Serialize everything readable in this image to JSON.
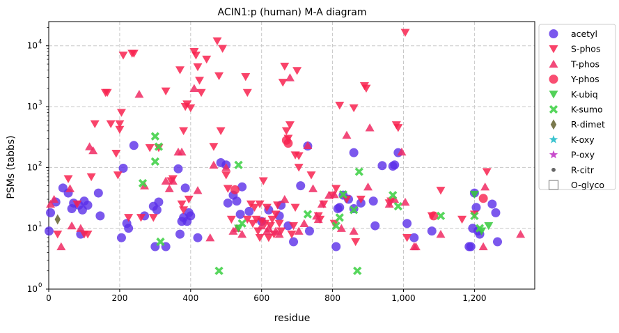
{
  "chart_data": {
    "type": "scatter",
    "title": "ACIN1:p (human) M-A diagram",
    "xlabel": "residue",
    "ylabel": "PSMs (tabbs)",
    "xlim": [
      0,
      1370
    ],
    "ylim": [
      1,
      25000
    ],
    "yscale": "log",
    "grid": true,
    "legend_position": "right outside",
    "x_ticks": [
      0,
      200,
      400,
      600,
      800,
      1000,
      1200
    ],
    "x_tick_labels": [
      "0",
      "200",
      "400",
      "600",
      "800",
      "1,000",
      "1,200"
    ],
    "y_ticks": [
      1,
      10,
      100,
      1000,
      10000
    ],
    "y_tick_labels": [
      "1",
      "10",
      "100",
      "1000",
      "10000"
    ],
    "series": [
      {
        "name": "acetyl",
        "marker": "circle",
        "color": "#5a2ee8",
        "points": [
          [
            1,
            9
          ],
          [
            5,
            18
          ],
          [
            20,
            27
          ],
          [
            40,
            46
          ],
          [
            55,
            38
          ],
          [
            65,
            21
          ],
          [
            70,
            26
          ],
          [
            85,
            24
          ],
          [
            90,
            8
          ],
          [
            95,
            20
          ],
          [
            100,
            28
          ],
          [
            110,
            24
          ],
          [
            140,
            38
          ],
          [
            145,
            16
          ],
          [
            205,
            7
          ],
          [
            210,
            97
          ],
          [
            220,
            12
          ],
          [
            225,
            10
          ],
          [
            240,
            230
          ],
          [
            270,
            16
          ],
          [
            295,
            23
          ],
          [
            300,
            5
          ],
          [
            305,
            20
          ],
          [
            310,
            27
          ],
          [
            330,
            5
          ],
          [
            365,
            95
          ],
          [
            370,
            8
          ],
          [
            375,
            13
          ],
          [
            380,
            15
          ],
          [
            385,
            46
          ],
          [
            390,
            13
          ],
          [
            395,
            18
          ],
          [
            400,
            16
          ],
          [
            420,
            7
          ],
          [
            485,
            120
          ],
          [
            500,
            110
          ],
          [
            505,
            26
          ],
          [
            520,
            35
          ],
          [
            530,
            28
          ],
          [
            540,
            17
          ],
          [
            545,
            48
          ],
          [
            565,
            19
          ],
          [
            600,
            13
          ],
          [
            620,
            20
          ],
          [
            650,
            16
          ],
          [
            655,
            24
          ],
          [
            675,
            11
          ],
          [
            690,
            6
          ],
          [
            710,
            50
          ],
          [
            730,
            225
          ],
          [
            735,
            9
          ],
          [
            810,
            5
          ],
          [
            815,
            21
          ],
          [
            820,
            22
          ],
          [
            830,
            35
          ],
          [
            845,
            30
          ],
          [
            860,
            21
          ],
          [
            860,
            175
          ],
          [
            880,
            26
          ],
          [
            915,
            28
          ],
          [
            920,
            11
          ],
          [
            940,
            107
          ],
          [
            970,
            105
          ],
          [
            975,
            110
          ],
          [
            985,
            175
          ],
          [
            1010,
            12
          ],
          [
            1030,
            7
          ],
          [
            1080,
            9
          ],
          [
            1185,
            5
          ],
          [
            1190,
            5
          ],
          [
            1195,
            10
          ],
          [
            1200,
            38
          ],
          [
            1205,
            22
          ],
          [
            1210,
            9
          ],
          [
            1215,
            8
          ],
          [
            1250,
            25
          ],
          [
            1260,
            18
          ],
          [
            1265,
            6
          ]
        ]
      },
      {
        "name": "S-phos",
        "marker": "triangle-down",
        "color": "#f8224f",
        "points": [
          [
            25,
            8
          ],
          [
            55,
            65
          ],
          [
            80,
            25
          ],
          [
            100,
            8
          ],
          [
            110,
            8
          ],
          [
            120,
            70
          ],
          [
            130,
            520
          ],
          [
            160,
            1700
          ],
          [
            165,
            1700
          ],
          [
            175,
            520
          ],
          [
            190,
            170
          ],
          [
            195,
            75
          ],
          [
            200,
            520
          ],
          [
            200,
            420
          ],
          [
            205,
            800
          ],
          [
            210,
            7000
          ],
          [
            225,
            15
          ],
          [
            235,
            7500
          ],
          [
            240,
            7500
          ],
          [
            260,
            15
          ],
          [
            285,
            210
          ],
          [
            295,
            15
          ],
          [
            310,
            210
          ],
          [
            330,
            1800
          ],
          [
            345,
            60
          ],
          [
            350,
            65
          ],
          [
            370,
            4000
          ],
          [
            375,
            25
          ],
          [
            380,
            20
          ],
          [
            380,
            400
          ],
          [
            385,
            1000
          ],
          [
            390,
            1100
          ],
          [
            395,
            30
          ],
          [
            400,
            950
          ],
          [
            410,
            8000
          ],
          [
            415,
            7000
          ],
          [
            420,
            4500
          ],
          [
            425,
            2700
          ],
          [
            430,
            1700
          ],
          [
            445,
            6000
          ],
          [
            465,
            220
          ],
          [
            475,
            12000
          ],
          [
            480,
            3200
          ],
          [
            485,
            400
          ],
          [
            490,
            9000
          ],
          [
            500,
            75
          ],
          [
            505,
            45
          ],
          [
            515,
            14
          ],
          [
            555,
            3100
          ],
          [
            560,
            1700
          ],
          [
            560,
            14
          ],
          [
            570,
            25
          ],
          [
            575,
            12
          ],
          [
            580,
            22
          ],
          [
            585,
            14
          ],
          [
            590,
            9
          ],
          [
            595,
            7
          ],
          [
            595,
            25
          ],
          [
            600,
            13
          ],
          [
            605,
            60
          ],
          [
            610,
            12
          ],
          [
            615,
            22
          ],
          [
            620,
            7
          ],
          [
            625,
            11
          ],
          [
            630,
            14
          ],
          [
            635,
            8
          ],
          [
            640,
            17
          ],
          [
            645,
            24
          ],
          [
            650,
            12
          ],
          [
            655,
            9
          ],
          [
            660,
            2500
          ],
          [
            665,
            4600
          ],
          [
            670,
            400
          ],
          [
            675,
            300
          ],
          [
            680,
            500
          ],
          [
            685,
            8
          ],
          [
            690,
            11
          ],
          [
            695,
            22
          ],
          [
            695,
            160
          ],
          [
            700,
            3900
          ],
          [
            705,
            155
          ],
          [
            705,
            100
          ],
          [
            740,
            75
          ],
          [
            760,
            16
          ],
          [
            765,
            14
          ],
          [
            775,
            25
          ],
          [
            800,
            35
          ],
          [
            805,
            12
          ],
          [
            810,
            45
          ],
          [
            820,
            1050
          ],
          [
            840,
            30
          ],
          [
            860,
            950
          ],
          [
            865,
            6
          ],
          [
            880,
            30
          ],
          [
            890,
            2200
          ],
          [
            895,
            2000
          ],
          [
            960,
            26
          ],
          [
            965,
            28
          ],
          [
            980,
            500
          ],
          [
            985,
            450
          ],
          [
            1005,
            16500
          ],
          [
            1010,
            7
          ],
          [
            1080,
            16
          ],
          [
            1105,
            42
          ],
          [
            1165,
            14
          ],
          [
            1200,
            17
          ],
          [
            1235,
            85
          ]
        ]
      },
      {
        "name": "T-phos",
        "marker": "triangle-up",
        "color": "#f02a63",
        "points": [
          [
            5,
            25
          ],
          [
            15,
            30
          ],
          [
            35,
            5
          ],
          [
            60,
            45
          ],
          [
            65,
            11
          ],
          [
            90,
            10
          ],
          [
            115,
            220
          ],
          [
            125,
            190
          ],
          [
            255,
            1600
          ],
          [
            270,
            50
          ],
          [
            330,
            60
          ],
          [
            340,
            45
          ],
          [
            350,
            60
          ],
          [
            365,
            180
          ],
          [
            375,
            180
          ],
          [
            410,
            2000
          ],
          [
            420,
            42
          ],
          [
            455,
            7
          ],
          [
            465,
            110
          ],
          [
            500,
            100
          ],
          [
            520,
            9
          ],
          [
            530,
            10
          ],
          [
            545,
            8
          ],
          [
            600,
            11
          ],
          [
            615,
            9
          ],
          [
            620,
            10
          ],
          [
            640,
            9
          ],
          [
            650,
            8
          ],
          [
            665,
            30
          ],
          [
            680,
            3000
          ],
          [
            705,
            9
          ],
          [
            720,
            12
          ],
          [
            730,
            230
          ],
          [
            745,
            45
          ],
          [
            755,
            16
          ],
          [
            760,
            14
          ],
          [
            770,
            25
          ],
          [
            790,
            35
          ],
          [
            805,
            36
          ],
          [
            825,
            10
          ],
          [
            840,
            340
          ],
          [
            860,
            9
          ],
          [
            900,
            48
          ],
          [
            905,
            450
          ],
          [
            960,
            25
          ],
          [
            975,
            30
          ],
          [
            995,
            180
          ],
          [
            1005,
            27
          ],
          [
            1030,
            5
          ],
          [
            1035,
            5
          ],
          [
            1105,
            8
          ],
          [
            1225,
            5
          ],
          [
            1230,
            48
          ],
          [
            1330,
            8
          ]
        ]
      },
      {
        "name": "Y-phos",
        "marker": "circle",
        "color": "#f8224f",
        "points": [
          [
            525,
            43
          ],
          [
            670,
            280
          ],
          [
            675,
            250
          ],
          [
            1085,
            16
          ],
          [
            1225,
            31
          ]
        ]
      },
      {
        "name": "K-ubiq",
        "marker": "triangle-down",
        "color": "#34c93b",
        "points": [
          [
            535,
            10
          ],
          [
            1200,
            36
          ],
          [
            1220,
            9
          ],
          [
            1240,
            11
          ]
        ]
      },
      {
        "name": "K-sumo",
        "marker": "x",
        "color": "#44d24a",
        "points": [
          [
            265,
            55
          ],
          [
            300,
            325
          ],
          [
            300,
            125
          ],
          [
            310,
            220
          ],
          [
            315,
            6
          ],
          [
            480,
            2
          ],
          [
            535,
            110
          ],
          [
            545,
            12
          ],
          [
            730,
            17
          ],
          [
            810,
            11
          ],
          [
            820,
            15
          ],
          [
            830,
            36
          ],
          [
            860,
            20
          ],
          [
            870,
            2
          ],
          [
            875,
            85
          ],
          [
            970,
            35
          ],
          [
            985,
            23
          ],
          [
            1105,
            16
          ],
          [
            1200,
            16
          ],
          [
            1215,
            10
          ]
        ]
      },
      {
        "name": "R-dimet",
        "marker": "diamond",
        "color": "#6b6a3a",
        "points": [
          [
            25,
            14
          ]
        ]
      },
      {
        "name": "K-oxy",
        "marker": "star",
        "color": "#3ac3cf",
        "points": []
      },
      {
        "name": "P-oxy",
        "marker": "star",
        "color": "#c84ccc",
        "points": []
      },
      {
        "name": "R-citr",
        "marker": "dot",
        "color": "#666666",
        "points": []
      },
      {
        "name": "O-glyco",
        "marker": "square-open",
        "color": "#888888",
        "points": []
      }
    ]
  }
}
